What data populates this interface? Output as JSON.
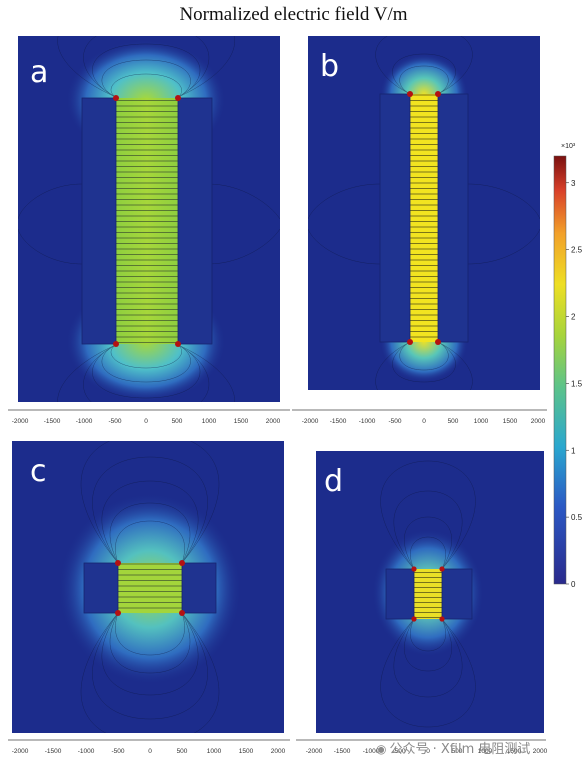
{
  "title": "Normalized electric field V/m",
  "panels": [
    {
      "letter": "a",
      "ticks": [
        "-2000",
        "-1500",
        "-1000",
        "-500",
        "0",
        "500",
        "1000",
        "1500",
        "2000"
      ]
    },
    {
      "letter": "b",
      "ticks": [
        "-2000",
        "-1500",
        "-1000",
        "-500",
        "0",
        "500",
        "1000",
        "1500",
        "2000"
      ]
    },
    {
      "letter": "c",
      "ticks": [
        "-2000",
        "-1500",
        "-1000",
        "-500",
        "0",
        "500",
        "1000",
        "1500",
        "2000"
      ]
    },
    {
      "letter": "d",
      "ticks": [
        "-2000",
        "-1500",
        "-1000",
        "-500",
        "0",
        "500",
        "1000",
        "1500",
        "2000"
      ]
    }
  ],
  "colorbar": {
    "exponent": "×10³",
    "ticks": [
      "3",
      "2.5",
      "2",
      "1.5",
      "1",
      "0.5",
      "0"
    ],
    "tick_values": [
      3,
      2.5,
      2,
      1.5,
      1,
      0.5,
      0
    ],
    "range": [
      0,
      3.2
    ]
  },
  "watermark": {
    "icon": "wechat-icon",
    "text": "公众号 · Xfilm 电阻测试"
  },
  "colors": {
    "background": "#1c2c8c",
    "field_low": "#23329a",
    "field_mid": "#2aa7cf",
    "field_high_a": "#9fd23c",
    "field_high_b": "#f2e420",
    "hotspot": "#b31212"
  }
}
